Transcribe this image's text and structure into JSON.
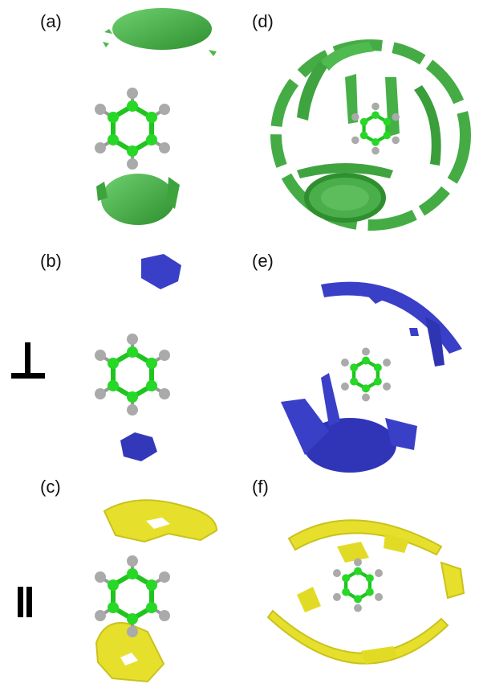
{
  "figure": {
    "panels": [
      {
        "id": "a",
        "label": "(a)",
        "color": "#3fae3f"
      },
      {
        "id": "b",
        "label": "(b)",
        "color": "#3a3fc8"
      },
      {
        "id": "c",
        "label": "(c)",
        "color": "#e6e02c"
      },
      {
        "id": "d",
        "label": "(d)",
        "color": "#3fae3f"
      },
      {
        "id": "e",
        "label": "(e)",
        "color": "#3a3fc8"
      },
      {
        "id": "f",
        "label": "(f)",
        "color": "#e6e02c"
      }
    ],
    "row_symbols": {
      "perpendicular": "⊥",
      "parallel": "∥"
    },
    "molecule": {
      "carbon_color": "#22cc22",
      "hydrogen_color": "#b0b0b0"
    }
  }
}
